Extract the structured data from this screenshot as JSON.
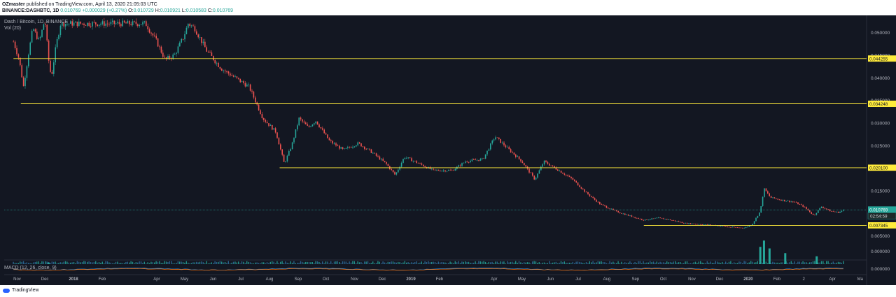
{
  "header": {
    "publisher": "OZmaster",
    "published_text": "published on TradingView.com, April 13, 2020 21:05:03 UTC",
    "symbol": "BINANCE:DASHBTC, 1D",
    "last_price": "0.010769",
    "change": "+0.000029 (+0.27%)",
    "open_label": "O:",
    "open": "0.010729",
    "high_label": "H:",
    "high": "0.010921",
    "low_label": "L:",
    "low": "0.010583",
    "close_label": "C:",
    "close": "0.010769"
  },
  "legend": {
    "series_title": "Dash / Bitcoin, 1D, BINANCE",
    "volume_title": "Vol (20)",
    "macd_title": "MACD (12, 26, close, 9)"
  },
  "footer": {
    "brand": "TradingView"
  },
  "colors": {
    "background": "#131722",
    "up": "#26a69a",
    "down": "#ef5350",
    "level_line": "#ffeb3b",
    "price_line": "#26a69a",
    "volume_up": "#26a69a",
    "volume_down": "#2f6f9f",
    "macd": "#2196f3",
    "signal": "#ff6d00"
  },
  "chart_data": {
    "type": "candlestick",
    "x_tick_labels": [
      "Nov",
      "Dec",
      "2018",
      "Feb",
      "Apr",
      "May",
      "Jun",
      "Jul",
      "Aug",
      "Sep",
      "Oct",
      "Nov",
      "Dec",
      "2019",
      "Feb",
      "Apr",
      "May",
      "Jun",
      "Jul",
      "Aug",
      "Sep",
      "Oct",
      "Nov",
      "Dec",
      "2020",
      "Feb",
      "2",
      "Apr",
      "Ma"
    ],
    "y_tick_labels": [
      "0.050000",
      "0.045000",
      "0.040000",
      "0.035000",
      "0.030000",
      "0.025000",
      "0.020000",
      "0.015000",
      "0.010000",
      "0.005000"
    ],
    "ylim": [
      0.0,
      0.0535
    ],
    "price_path": [
      {
        "x": "2017-10-28",
        "y": 0.048
      },
      {
        "x": "2017-11-03",
        "y": 0.0442
      },
      {
        "x": "2017-11-08",
        "y": 0.038
      },
      {
        "x": "2017-11-13",
        "y": 0.045
      },
      {
        "x": "2017-11-18",
        "y": 0.051
      },
      {
        "x": "2017-11-25",
        "y": 0.048
      },
      {
        "x": "2017-12-01",
        "y": 0.053
      },
      {
        "x": "2017-12-05",
        "y": 0.044
      },
      {
        "x": "2017-12-08",
        "y": 0.04
      },
      {
        "x": "2017-12-13",
        "y": 0.047
      },
      {
        "x": "2017-12-18",
        "y": 0.052
      },
      {
        "x": "2018-03-20",
        "y": 0.052
      },
      {
        "x": "2018-04-01",
        "y": 0.048
      },
      {
        "x": "2018-04-10",
        "y": 0.044
      },
      {
        "x": "2018-04-20",
        "y": 0.045
      },
      {
        "x": "2018-04-30",
        "y": 0.049
      },
      {
        "x": "2018-05-05",
        "y": 0.052
      },
      {
        "x": "2018-05-12",
        "y": 0.051
      },
      {
        "x": "2018-05-25",
        "y": 0.046
      },
      {
        "x": "2018-06-10",
        "y": 0.042
      },
      {
        "x": "2018-06-25",
        "y": 0.04
      },
      {
        "x": "2018-07-10",
        "y": 0.038
      },
      {
        "x": "2018-07-25",
        "y": 0.031
      },
      {
        "x": "2018-08-08",
        "y": 0.028
      },
      {
        "x": "2018-08-17",
        "y": 0.021
      },
      {
        "x": "2018-08-25",
        "y": 0.025
      },
      {
        "x": "2018-09-02",
        "y": 0.031
      },
      {
        "x": "2018-09-12",
        "y": 0.029
      },
      {
        "x": "2018-09-20",
        "y": 0.0305
      },
      {
        "x": "2018-10-05",
        "y": 0.026
      },
      {
        "x": "2018-10-20",
        "y": 0.024
      },
      {
        "x": "2018-11-05",
        "y": 0.0255
      },
      {
        "x": "2018-11-20",
        "y": 0.0235
      },
      {
        "x": "2018-12-05",
        "y": 0.021
      },
      {
        "x": "2018-12-15",
        "y": 0.0185
      },
      {
        "x": "2018-12-25",
        "y": 0.0225
      },
      {
        "x": "2019-01-05",
        "y": 0.0215
      },
      {
        "x": "2019-01-25",
        "y": 0.0195
      },
      {
        "x": "2019-02-15",
        "y": 0.0195
      },
      {
        "x": "2019-03-01",
        "y": 0.0215
      },
      {
        "x": "2019-03-20",
        "y": 0.022
      },
      {
        "x": "2019-04-02",
        "y": 0.027
      },
      {
        "x": "2019-04-15",
        "y": 0.0245
      },
      {
        "x": "2019-05-01",
        "y": 0.0215
      },
      {
        "x": "2019-05-15",
        "y": 0.0175
      },
      {
        "x": "2019-05-25",
        "y": 0.0215
      },
      {
        "x": "2019-06-10",
        "y": 0.0195
      },
      {
        "x": "2019-06-25",
        "y": 0.0175
      },
      {
        "x": "2019-07-10",
        "y": 0.0145
      },
      {
        "x": "2019-07-25",
        "y": 0.012
      },
      {
        "x": "2019-08-10",
        "y": 0.0105
      },
      {
        "x": "2019-08-25",
        "y": 0.0095
      },
      {
        "x": "2019-09-10",
        "y": 0.0085
      },
      {
        "x": "2019-09-25",
        "y": 0.009
      },
      {
        "x": "2019-10-10",
        "y": 0.0085
      },
      {
        "x": "2019-10-25",
        "y": 0.0078
      },
      {
        "x": "2019-11-10",
        "y": 0.0076
      },
      {
        "x": "2019-11-25",
        "y": 0.0074
      },
      {
        "x": "2019-12-10",
        "y": 0.007
      },
      {
        "x": "2019-12-28",
        "y": 0.0068
      },
      {
        "x": "2020-01-05",
        "y": 0.0075
      },
      {
        "x": "2020-01-14",
        "y": 0.0105
      },
      {
        "x": "2020-01-18",
        "y": 0.0155
      },
      {
        "x": "2020-01-25",
        "y": 0.0135
      },
      {
        "x": "2020-02-05",
        "y": 0.013
      },
      {
        "x": "2020-02-20",
        "y": 0.0125
      },
      {
        "x": "2020-03-01",
        "y": 0.0115
      },
      {
        "x": "2020-03-12",
        "y": 0.0095
      },
      {
        "x": "2020-03-20",
        "y": 0.0115
      },
      {
        "x": "2020-03-30",
        "y": 0.0105
      },
      {
        "x": "2020-04-08",
        "y": 0.0102
      },
      {
        "x": "2020-04-13",
        "y": 0.010769
      }
    ],
    "horizontal_levels": [
      {
        "start": "2017-10-28",
        "value": 0.044255,
        "label": "0.044255"
      },
      {
        "start": "2017-11-05",
        "value": 0.034248,
        "label": "0.034248"
      },
      {
        "start": "2018-08-12",
        "value": 0.0201,
        "label": "0.020100"
      },
      {
        "start": "2019-09-10",
        "value": 0.007345,
        "label": "0.007345"
      }
    ],
    "last_price": {
      "value": 0.010769,
      "label": "0.010769",
      "countdown": "02:54:59"
    },
    "volume_axis_label": "0.000000",
    "macd_axis_label": "0.000000",
    "volume_spikes": [
      {
        "x": "2017-12-05",
        "level": 0.05
      },
      {
        "x": "2020-01-14",
        "level": 0.55
      },
      {
        "x": "2020-01-18",
        "level": 0.75
      },
      {
        "x": "2020-01-24",
        "level": 0.5
      },
      {
        "x": "2020-02-10",
        "level": 0.35
      },
      {
        "x": "2020-03-15",
        "level": 0.25
      }
    ]
  }
}
